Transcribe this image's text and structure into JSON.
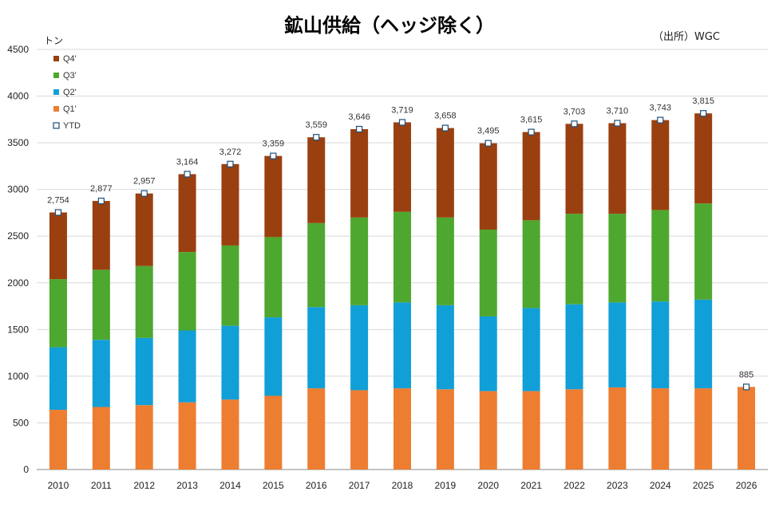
{
  "title": "鉱山供給（ヘッジ除く）",
  "source": "（出所）WGC",
  "unit": "トン",
  "colors": {
    "q1": "#ED7D31",
    "q2": "#119FD8",
    "q3": "#4EA72E",
    "q4": "#9A4010",
    "ytd_fill": "#FFFFFF",
    "ytd_stroke": "#1F4E79",
    "grid": "#D9D9D9",
    "axis": "#888888"
  },
  "chart_data": {
    "type": "bar",
    "stacked": true,
    "title": "鉱山供給（ヘッジ除く）",
    "ylabel": "トン",
    "ylim": [
      0,
      4500
    ],
    "yticks": [
      0,
      500,
      1000,
      1500,
      2000,
      2500,
      3000,
      3500,
      4000,
      4500
    ],
    "grid": true,
    "legend_position": "top-left",
    "categories": [
      "2010",
      "2011",
      "2012",
      "2013",
      "2014",
      "2015",
      "2016",
      "2017",
      "2018",
      "2019",
      "2020",
      "2021",
      "2022",
      "2023",
      "2024",
      "2025",
      "2026"
    ],
    "series": [
      {
        "name": "Q1'",
        "color_key": "q1",
        "values": [
          640,
          670,
          690,
          720,
          750,
          790,
          870,
          850,
          870,
          860,
          840,
          840,
          860,
          880,
          870,
          870,
          885
        ]
      },
      {
        "name": "Q2'",
        "color_key": "q2",
        "values": [
          670,
          720,
          720,
          770,
          790,
          840,
          870,
          910,
          920,
          900,
          800,
          890,
          910,
          910,
          930,
          950,
          0
        ]
      },
      {
        "name": "Q3'",
        "color_key": "q3",
        "values": [
          730,
          750,
          770,
          840,
          860,
          860,
          900,
          940,
          970,
          940,
          930,
          940,
          970,
          950,
          980,
          1030,
          0
        ]
      },
      {
        "name": "Q4'",
        "color_key": "q4",
        "values": [
          714,
          737,
          777,
          834,
          872,
          869,
          919,
          946,
          959,
          958,
          925,
          945,
          963,
          970,
          963,
          965,
          0
        ]
      }
    ],
    "ytd": {
      "name": "YTD",
      "values": [
        2754,
        2877,
        2957,
        3164,
        3272,
        3359,
        3559,
        3646,
        3719,
        3658,
        3495,
        3615,
        3703,
        3710,
        3743,
        3815,
        885
      ],
      "labels": [
        "2,754",
        "2,877",
        "2,957",
        "3,164",
        "3,272",
        "3,359",
        "3,559",
        "3,646",
        "3,719",
        "3,658",
        "3,495",
        "3,615",
        "3,703",
        "3,710",
        "3,743",
        "3,815",
        "885"
      ]
    }
  }
}
